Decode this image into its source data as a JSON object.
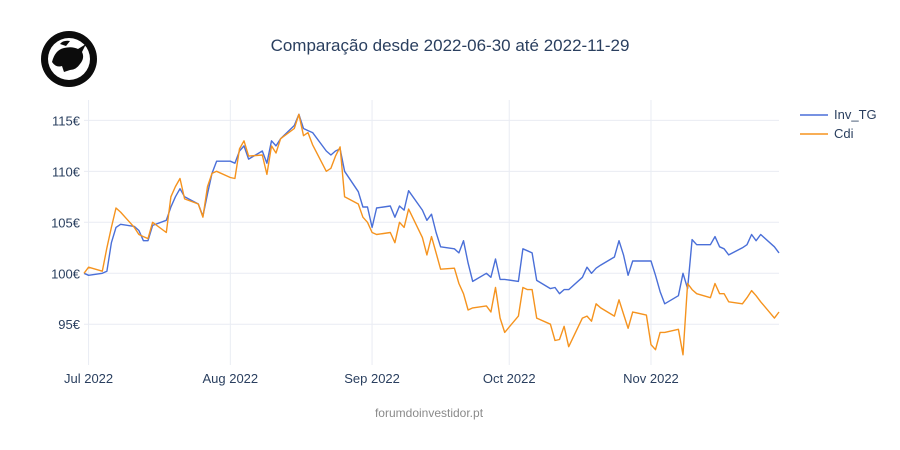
{
  "logo_icon": "bull-head-logo",
  "footer": "forumdoinvestidor.pt",
  "chart_data": {
    "type": "line",
    "title": "Comparação desde 2022-06-30 até 2022-11-29",
    "xlabel": "",
    "ylabel": "",
    "x_range": [
      "2022-06-30",
      "2022-11-29"
    ],
    "ylim": [
      91,
      117
    ],
    "yticks": [
      95,
      100,
      105,
      110,
      115
    ],
    "ytick_labels": [
      "95€",
      "100€",
      "105€",
      "110€",
      "115€"
    ],
    "xticks": [
      "2022-07-01",
      "2022-08-01",
      "2022-09-01",
      "2022-10-01",
      "2022-11-01"
    ],
    "xtick_labels": [
      "Jul 2022",
      "Aug 2022",
      "Sep 2022",
      "Oct 2022",
      "Nov 2022"
    ],
    "grid": true,
    "legend_position": "top-right",
    "series": [
      {
        "name": "Inv_TG",
        "color": "#4a6fd8",
        "points": [
          [
            "2022-06-30",
            100.0
          ],
          [
            "2022-07-01",
            99.8
          ],
          [
            "2022-07-04",
            100.0
          ],
          [
            "2022-07-05",
            100.2
          ],
          [
            "2022-07-06",
            103.0
          ],
          [
            "2022-07-07",
            104.5
          ],
          [
            "2022-07-08",
            104.8
          ],
          [
            "2022-07-11",
            104.6
          ],
          [
            "2022-07-12",
            104.2
          ],
          [
            "2022-07-13",
            103.2
          ],
          [
            "2022-07-14",
            103.2
          ],
          [
            "2022-07-15",
            104.7
          ],
          [
            "2022-07-18",
            105.2
          ],
          [
            "2022-07-19",
            106.5
          ],
          [
            "2022-07-20",
            107.5
          ],
          [
            "2022-07-21",
            108.3
          ],
          [
            "2022-07-22",
            107.5
          ],
          [
            "2022-07-25",
            106.8
          ],
          [
            "2022-07-26",
            105.6
          ],
          [
            "2022-07-27",
            107.8
          ],
          [
            "2022-07-28",
            109.8
          ],
          [
            "2022-07-29",
            111.0
          ],
          [
            "2022-08-01",
            111.0
          ],
          [
            "2022-08-02",
            110.8
          ],
          [
            "2022-08-03",
            112.0
          ],
          [
            "2022-08-04",
            112.5
          ],
          [
            "2022-08-05",
            111.2
          ],
          [
            "2022-08-08",
            112.0
          ],
          [
            "2022-08-09",
            110.8
          ],
          [
            "2022-08-10",
            113.0
          ],
          [
            "2022-08-11",
            112.5
          ],
          [
            "2022-08-12",
            113.2
          ],
          [
            "2022-08-15",
            114.5
          ],
          [
            "2022-08-16",
            115.6
          ],
          [
            "2022-08-17",
            114.2
          ],
          [
            "2022-08-18",
            114.0
          ],
          [
            "2022-08-19",
            113.8
          ],
          [
            "2022-08-22",
            112.0
          ],
          [
            "2022-08-23",
            111.6
          ],
          [
            "2022-08-24",
            112.0
          ],
          [
            "2022-08-25",
            112.2
          ],
          [
            "2022-08-26",
            110.0
          ],
          [
            "2022-08-29",
            108.0
          ],
          [
            "2022-08-30",
            106.5
          ],
          [
            "2022-08-31",
            106.5
          ],
          [
            "2022-09-01",
            104.5
          ],
          [
            "2022-09-02",
            106.4
          ],
          [
            "2022-09-05",
            106.6
          ],
          [
            "2022-09-06",
            105.5
          ],
          [
            "2022-09-07",
            106.6
          ],
          [
            "2022-09-08",
            106.2
          ],
          [
            "2022-09-09",
            108.1
          ],
          [
            "2022-09-12",
            106.2
          ],
          [
            "2022-09-13",
            105.2
          ],
          [
            "2022-09-14",
            105.8
          ],
          [
            "2022-09-15",
            104.0
          ],
          [
            "2022-09-16",
            102.6
          ],
          [
            "2022-09-19",
            102.4
          ],
          [
            "2022-09-20",
            102.0
          ],
          [
            "2022-09-21",
            103.2
          ],
          [
            "2022-09-22",
            101.0
          ],
          [
            "2022-09-23",
            99.2
          ],
          [
            "2022-09-26",
            100.0
          ],
          [
            "2022-09-27",
            99.6
          ],
          [
            "2022-09-28",
            101.4
          ],
          [
            "2022-09-29",
            99.4
          ],
          [
            "2022-09-30",
            99.4
          ],
          [
            "2022-10-03",
            99.2
          ],
          [
            "2022-10-04",
            102.4
          ],
          [
            "2022-10-05",
            102.2
          ],
          [
            "2022-10-06",
            102.0
          ],
          [
            "2022-10-07",
            99.3
          ],
          [
            "2022-10-10",
            98.5
          ],
          [
            "2022-10-11",
            98.6
          ],
          [
            "2022-10-12",
            98.0
          ],
          [
            "2022-10-13",
            98.4
          ],
          [
            "2022-10-14",
            98.4
          ],
          [
            "2022-10-17",
            99.6
          ],
          [
            "2022-10-18",
            100.6
          ],
          [
            "2022-10-19",
            100.0
          ],
          [
            "2022-10-20",
            100.5
          ],
          [
            "2022-10-21",
            100.8
          ],
          [
            "2022-10-24",
            101.6
          ],
          [
            "2022-10-25",
            103.2
          ],
          [
            "2022-10-26",
            101.8
          ],
          [
            "2022-10-27",
            99.8
          ],
          [
            "2022-10-28",
            101.2
          ],
          [
            "2022-10-31",
            101.2
          ],
          [
            "2022-11-01",
            101.2
          ],
          [
            "2022-11-02",
            99.8
          ],
          [
            "2022-11-03",
            98.2
          ],
          [
            "2022-11-04",
            97.0
          ],
          [
            "2022-11-07",
            97.8
          ],
          [
            "2022-11-08",
            100.0
          ],
          [
            "2022-11-09",
            98.5
          ],
          [
            "2022-11-10",
            103.3
          ],
          [
            "2022-11-11",
            102.8
          ],
          [
            "2022-11-14",
            102.8
          ],
          [
            "2022-11-15",
            103.6
          ],
          [
            "2022-11-16",
            102.6
          ],
          [
            "2022-11-17",
            102.4
          ],
          [
            "2022-11-18",
            101.8
          ],
          [
            "2022-11-21",
            102.5
          ],
          [
            "2022-11-22",
            102.8
          ],
          [
            "2022-11-23",
            103.8
          ],
          [
            "2022-11-24",
            103.2
          ],
          [
            "2022-11-25",
            103.8
          ],
          [
            "2022-11-28",
            102.6
          ],
          [
            "2022-11-29",
            102.0
          ]
        ]
      },
      {
        "name": "Cdi",
        "color": "#f5931e",
        "points": [
          [
            "2022-06-30",
            100.0
          ],
          [
            "2022-07-01",
            100.6
          ],
          [
            "2022-07-04",
            100.2
          ],
          [
            "2022-07-05",
            102.5
          ],
          [
            "2022-07-06",
            104.5
          ],
          [
            "2022-07-07",
            106.4
          ],
          [
            "2022-07-08",
            106.0
          ],
          [
            "2022-07-11",
            104.5
          ],
          [
            "2022-07-12",
            103.8
          ],
          [
            "2022-07-13",
            103.6
          ],
          [
            "2022-07-14",
            103.4
          ],
          [
            "2022-07-15",
            105.0
          ],
          [
            "2022-07-18",
            104.0
          ],
          [
            "2022-07-19",
            107.5
          ],
          [
            "2022-07-20",
            108.5
          ],
          [
            "2022-07-21",
            109.3
          ],
          [
            "2022-07-22",
            107.3
          ],
          [
            "2022-07-25",
            106.8
          ],
          [
            "2022-07-26",
            105.5
          ],
          [
            "2022-07-27",
            108.5
          ],
          [
            "2022-07-28",
            109.8
          ],
          [
            "2022-07-29",
            110.0
          ],
          [
            "2022-08-01",
            109.4
          ],
          [
            "2022-08-02",
            109.3
          ],
          [
            "2022-08-03",
            112.2
          ],
          [
            "2022-08-04",
            113.0
          ],
          [
            "2022-08-05",
            111.5
          ],
          [
            "2022-08-08",
            111.6
          ],
          [
            "2022-08-09",
            109.7
          ],
          [
            "2022-08-10",
            112.5
          ],
          [
            "2022-08-11",
            111.8
          ],
          [
            "2022-08-12",
            113.2
          ],
          [
            "2022-08-15",
            114.2
          ],
          [
            "2022-08-16",
            115.6
          ],
          [
            "2022-08-17",
            113.5
          ],
          [
            "2022-08-18",
            113.8
          ],
          [
            "2022-08-19",
            112.6
          ],
          [
            "2022-08-22",
            110.0
          ],
          [
            "2022-08-23",
            110.3
          ],
          [
            "2022-08-24",
            111.5
          ],
          [
            "2022-08-25",
            112.4
          ],
          [
            "2022-08-26",
            107.5
          ],
          [
            "2022-08-29",
            106.8
          ],
          [
            "2022-08-30",
            105.5
          ],
          [
            "2022-08-31",
            105.0
          ],
          [
            "2022-09-01",
            104.0
          ],
          [
            "2022-09-02",
            103.8
          ],
          [
            "2022-09-05",
            104.0
          ],
          [
            "2022-09-06",
            103.0
          ],
          [
            "2022-09-07",
            105.0
          ],
          [
            "2022-09-08",
            104.5
          ],
          [
            "2022-09-09",
            106.3
          ],
          [
            "2022-09-12",
            103.5
          ],
          [
            "2022-09-13",
            101.8
          ],
          [
            "2022-09-14",
            103.6
          ],
          [
            "2022-09-15",
            102.0
          ],
          [
            "2022-09-16",
            100.4
          ],
          [
            "2022-09-19",
            100.5
          ],
          [
            "2022-09-20",
            99.0
          ],
          [
            "2022-09-21",
            98.0
          ],
          [
            "2022-09-22",
            96.4
          ],
          [
            "2022-09-23",
            96.6
          ],
          [
            "2022-09-26",
            96.8
          ],
          [
            "2022-09-27",
            96.2
          ],
          [
            "2022-09-28",
            98.6
          ],
          [
            "2022-09-29",
            95.6
          ],
          [
            "2022-09-30",
            94.2
          ],
          [
            "2022-10-03",
            95.8
          ],
          [
            "2022-10-04",
            98.6
          ],
          [
            "2022-10-05",
            98.4
          ],
          [
            "2022-10-06",
            98.4
          ],
          [
            "2022-10-07",
            95.6
          ],
          [
            "2022-10-10",
            95.0
          ],
          [
            "2022-10-11",
            93.4
          ],
          [
            "2022-10-12",
            93.5
          ],
          [
            "2022-10-13",
            94.8
          ],
          [
            "2022-10-14",
            92.8
          ],
          [
            "2022-10-17",
            95.6
          ],
          [
            "2022-10-18",
            95.8
          ],
          [
            "2022-10-19",
            95.3
          ],
          [
            "2022-10-20",
            97.0
          ],
          [
            "2022-10-21",
            96.6
          ],
          [
            "2022-10-24",
            95.8
          ],
          [
            "2022-10-25",
            97.4
          ],
          [
            "2022-10-26",
            96.0
          ],
          [
            "2022-10-27",
            94.6
          ],
          [
            "2022-10-28",
            96.2
          ],
          [
            "2022-10-31",
            95.9
          ],
          [
            "2022-11-01",
            93.0
          ],
          [
            "2022-11-02",
            92.5
          ],
          [
            "2022-11-03",
            94.2
          ],
          [
            "2022-11-04",
            94.2
          ],
          [
            "2022-11-07",
            94.5
          ],
          [
            "2022-11-08",
            92.0
          ],
          [
            "2022-11-09",
            99.0
          ],
          [
            "2022-11-10",
            98.4
          ],
          [
            "2022-11-11",
            98.0
          ],
          [
            "2022-11-14",
            97.6
          ],
          [
            "2022-11-15",
            99.0
          ],
          [
            "2022-11-16",
            98.0
          ],
          [
            "2022-11-17",
            98.0
          ],
          [
            "2022-11-18",
            97.2
          ],
          [
            "2022-11-21",
            97.0
          ],
          [
            "2022-11-22",
            97.6
          ],
          [
            "2022-11-23",
            98.3
          ],
          [
            "2022-11-24",
            97.8
          ],
          [
            "2022-11-25",
            97.2
          ],
          [
            "2022-11-28",
            95.6
          ],
          [
            "2022-11-29",
            96.2
          ]
        ]
      }
    ]
  }
}
